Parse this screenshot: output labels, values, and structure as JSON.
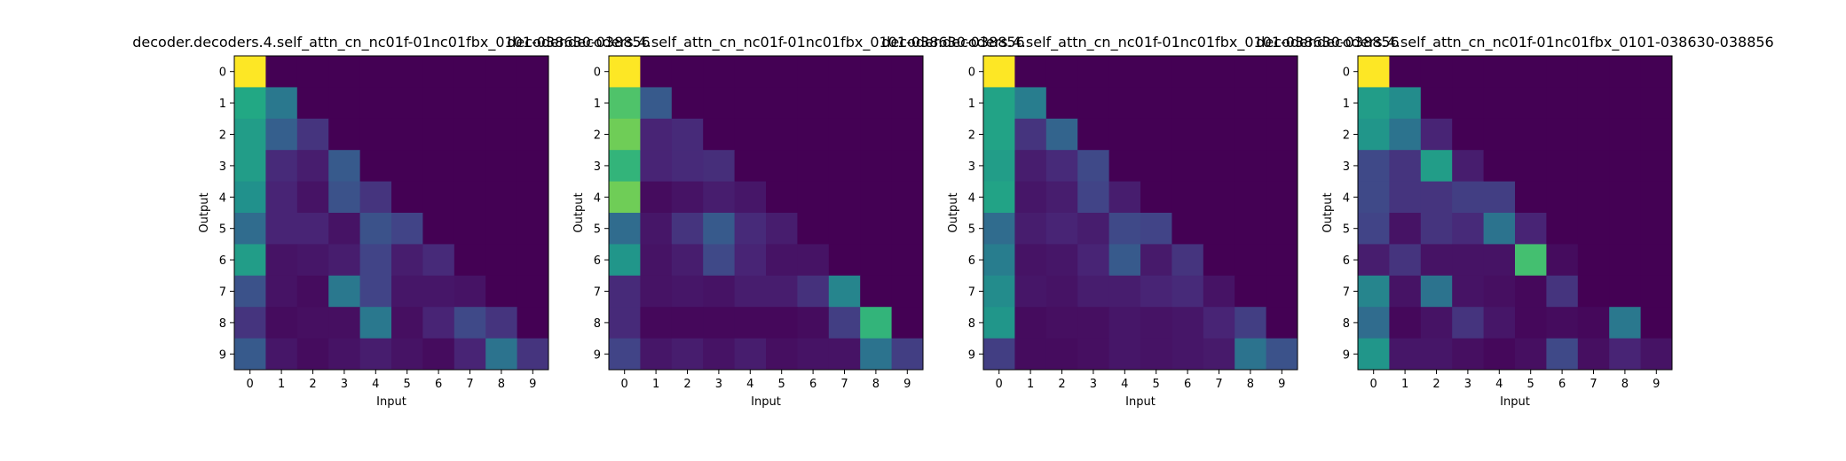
{
  "chart_data": [
    {
      "type": "heatmap",
      "title": "decoder.decoders.4.self_attn_cn_nc01f-01nc01fbx_0101-038630-038856",
      "xlabel": "Input",
      "ylabel": "Output",
      "x_ticks": [
        "0",
        "1",
        "2",
        "3",
        "4",
        "5",
        "6",
        "7",
        "8",
        "9"
      ],
      "y_ticks": [
        "0",
        "1",
        "2",
        "3",
        "4",
        "5",
        "6",
        "7",
        "8",
        "9"
      ],
      "colormap": "viridis",
      "vlim": [
        0,
        1
      ],
      "values": [
        [
          1.0,
          0,
          0,
          0,
          0,
          0,
          0,
          0,
          0,
          0
        ],
        [
          0.6,
          0.4,
          0,
          0,
          0,
          0,
          0,
          0,
          0,
          0
        ],
        [
          0.55,
          0.3,
          0.15,
          0,
          0,
          0,
          0,
          0,
          0,
          0
        ],
        [
          0.55,
          0.12,
          0.08,
          0.28,
          0,
          0,
          0,
          0,
          0,
          0
        ],
        [
          0.5,
          0.1,
          0.05,
          0.25,
          0.15,
          0,
          0,
          0,
          0,
          0
        ],
        [
          0.35,
          0.1,
          0.1,
          0.05,
          0.25,
          0.2,
          0,
          0,
          0,
          0
        ],
        [
          0.55,
          0.05,
          0.06,
          0.08,
          0.2,
          0.08,
          0.12,
          0,
          0,
          0
        ],
        [
          0.25,
          0.05,
          0.03,
          0.4,
          0.2,
          0.06,
          0.06,
          0.05,
          0,
          0
        ],
        [
          0.15,
          0.03,
          0.04,
          0.04,
          0.4,
          0.04,
          0.1,
          0.22,
          0.15,
          0
        ],
        [
          0.28,
          0.06,
          0.03,
          0.05,
          0.08,
          0.05,
          0.03,
          0.1,
          0.38,
          0.15
        ]
      ]
    },
    {
      "type": "heatmap",
      "title": "decoder.decoders.4.self_attn_cn_nc01f-01nc01fbx_0101-038630-038856",
      "xlabel": "Input",
      "ylabel": "Output",
      "x_ticks": [
        "0",
        "1",
        "2",
        "3",
        "4",
        "5",
        "6",
        "7",
        "8",
        "9"
      ],
      "y_ticks": [
        "0",
        "1",
        "2",
        "3",
        "4",
        "5",
        "6",
        "7",
        "8",
        "9"
      ],
      "colormap": "viridis",
      "vlim": [
        0,
        1
      ],
      "values": [
        [
          1.0,
          0,
          0,
          0,
          0,
          0,
          0,
          0,
          0,
          0
        ],
        [
          0.72,
          0.28,
          0,
          0,
          0,
          0,
          0,
          0,
          0,
          0
        ],
        [
          0.78,
          0.1,
          0.12,
          0,
          0,
          0,
          0,
          0,
          0,
          0
        ],
        [
          0.65,
          0.1,
          0.12,
          0.13,
          0,
          0,
          0,
          0,
          0,
          0
        ],
        [
          0.78,
          0.03,
          0.05,
          0.08,
          0.06,
          0,
          0,
          0,
          0,
          0
        ],
        [
          0.35,
          0.06,
          0.15,
          0.28,
          0.12,
          0.08,
          0,
          0,
          0,
          0
        ],
        [
          0.52,
          0.05,
          0.08,
          0.22,
          0.1,
          0.05,
          0.05,
          0,
          0,
          0
        ],
        [
          0.12,
          0.05,
          0.06,
          0.05,
          0.08,
          0.08,
          0.14,
          0.45,
          0,
          0
        ],
        [
          0.12,
          0.02,
          0.02,
          0.02,
          0.02,
          0.02,
          0.03,
          0.18,
          0.65,
          0
        ],
        [
          0.2,
          0.06,
          0.08,
          0.05,
          0.08,
          0.04,
          0.05,
          0.05,
          0.38,
          0.18
        ]
      ]
    },
    {
      "type": "heatmap",
      "title": "decoder.decoders.4.self_attn_cn_nc01f-01nc01fbx_0101-038630-038856",
      "xlabel": "Input",
      "ylabel": "Output",
      "x_ticks": [
        "0",
        "1",
        "2",
        "3",
        "4",
        "5",
        "6",
        "7",
        "8",
        "9"
      ],
      "y_ticks": [
        "0",
        "1",
        "2",
        "3",
        "4",
        "5",
        "6",
        "7",
        "8",
        "9"
      ],
      "colormap": "viridis",
      "vlim": [
        0,
        1
      ],
      "values": [
        [
          1.0,
          0,
          0,
          0,
          0,
          0,
          0,
          0,
          0,
          0
        ],
        [
          0.58,
          0.42,
          0,
          0,
          0,
          0,
          0,
          0,
          0,
          0
        ],
        [
          0.58,
          0.15,
          0.32,
          0,
          0,
          0,
          0,
          0,
          0,
          0
        ],
        [
          0.55,
          0.08,
          0.12,
          0.22,
          0,
          0,
          0,
          0,
          0,
          0
        ],
        [
          0.58,
          0.06,
          0.08,
          0.2,
          0.08,
          0,
          0,
          0,
          0,
          0
        ],
        [
          0.35,
          0.08,
          0.1,
          0.08,
          0.22,
          0.2,
          0,
          0,
          0,
          0
        ],
        [
          0.42,
          0.05,
          0.06,
          0.1,
          0.28,
          0.07,
          0.15,
          0,
          0,
          0
        ],
        [
          0.48,
          0.06,
          0.05,
          0.08,
          0.08,
          0.1,
          0.12,
          0.05,
          0,
          0
        ],
        [
          0.52,
          0.03,
          0.04,
          0.04,
          0.06,
          0.05,
          0.06,
          0.1,
          0.18,
          0
        ],
        [
          0.18,
          0.03,
          0.03,
          0.04,
          0.06,
          0.05,
          0.06,
          0.07,
          0.38,
          0.25
        ]
      ]
    },
    {
      "type": "heatmap",
      "title": "decoder.decoders.4.self_attn_cn_nc01f-01nc01fbx_0101-038630-038856",
      "xlabel": "Input",
      "ylabel": "Output",
      "x_ticks": [
        "0",
        "1",
        "2",
        "3",
        "4",
        "5",
        "6",
        "7",
        "8",
        "9"
      ],
      "y_ticks": [
        "0",
        "1",
        "2",
        "3",
        "4",
        "5",
        "6",
        "7",
        "8",
        "9"
      ],
      "colormap": "viridis",
      "vlim": [
        0,
        1
      ],
      "values": [
        [
          1.0,
          0,
          0,
          0,
          0,
          0,
          0,
          0,
          0,
          0
        ],
        [
          0.55,
          0.48,
          0,
          0,
          0,
          0,
          0,
          0,
          0,
          0
        ],
        [
          0.52,
          0.38,
          0.1,
          0,
          0,
          0,
          0,
          0,
          0,
          0
        ],
        [
          0.22,
          0.15,
          0.55,
          0.08,
          0,
          0,
          0,
          0,
          0,
          0
        ],
        [
          0.22,
          0.15,
          0.15,
          0.18,
          0.18,
          0,
          0,
          0,
          0,
          0
        ],
        [
          0.2,
          0.05,
          0.15,
          0.12,
          0.38,
          0.1,
          0,
          0,
          0,
          0
        ],
        [
          0.08,
          0.15,
          0.05,
          0.05,
          0.05,
          0.7,
          0.03,
          0,
          0,
          0
        ],
        [
          0.45,
          0.05,
          0.38,
          0.05,
          0.04,
          0.02,
          0.15,
          0,
          0,
          0
        ],
        [
          0.35,
          0.02,
          0.05,
          0.15,
          0.06,
          0.02,
          0.03,
          0.02,
          0.4,
          0
        ],
        [
          0.52,
          0.06,
          0.06,
          0.04,
          0.02,
          0.04,
          0.22,
          0.04,
          0.1,
          0.05
        ]
      ]
    }
  ]
}
